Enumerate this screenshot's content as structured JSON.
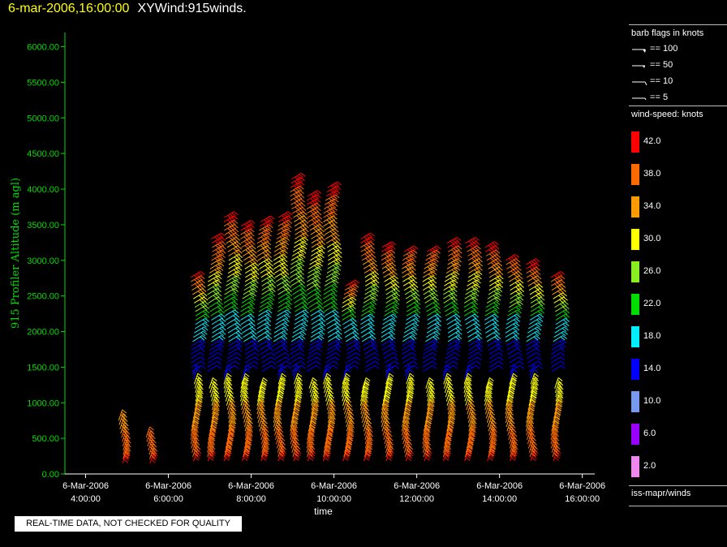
{
  "header": {
    "time": "6-mar-2006,16:00:00",
    "product": "XYWind:915winds."
  },
  "notice": "REAL-TIME DATA, NOT CHECKED FOR QUALITY",
  "legend": {
    "barb_title": "barb flags in knots",
    "barbs": [
      "== 100",
      "== 50",
      "== 10",
      "== 5"
    ],
    "speed_title": "wind-speed: knots",
    "colors": [
      {
        "label": "42.0",
        "color": "#ff0000"
      },
      {
        "label": "38.0",
        "color": "#ff6a00"
      },
      {
        "label": "34.0",
        "color": "#ff9a00"
      },
      {
        "label": "30.0",
        "color": "#ffff00"
      },
      {
        "label": "26.0",
        "color": "#88ee22"
      },
      {
        "label": "22.0",
        "color": "#00dd00"
      },
      {
        "label": "18.0",
        "color": "#00eeff"
      },
      {
        "label": "14.0",
        "color": "#0000ff"
      },
      {
        "label": "10.0",
        "color": "#7799ee"
      },
      {
        "label": "6.0",
        "color": "#9900ff"
      },
      {
        "label": "2.0",
        "color": "#ee88ee"
      }
    ],
    "source": "iss-mapr/winds"
  },
  "chart_data": {
    "type": "scatter",
    "ylabel": "915 Profiler Altitude (m agl)",
    "xlabel": "time",
    "ylim": [
      0,
      6200
    ],
    "xlim": [
      3.5,
      16.3
    ],
    "yticks": [
      "0.00",
      "500.00",
      "1000.00",
      "1500.00",
      "2000.00",
      "2500.00",
      "3000.00",
      "3500.00",
      "4000.00",
      "4500.00",
      "5000.00",
      "5500.00",
      "6000.00"
    ],
    "ytick_values": [
      0,
      500,
      1000,
      1500,
      2000,
      2500,
      3000,
      3500,
      4000,
      4500,
      5000,
      5500,
      6000
    ],
    "xticks": [
      {
        "value": 4,
        "date": "6-Mar-2006",
        "time": "4:00:00"
      },
      {
        "value": 6,
        "date": "6-Mar-2006",
        "time": "6:00:00"
      },
      {
        "value": 8,
        "date": "6-Mar-2006",
        "time": "8:00:00"
      },
      {
        "value": 10,
        "date": "6-Mar-2006",
        "time": "10:00:00"
      },
      {
        "value": 12,
        "date": "6-Mar-2006",
        "time": "12:00:00"
      },
      {
        "value": 14,
        "date": "6-Mar-2006",
        "time": "14:00:00"
      },
      {
        "value": 16,
        "date": "6-Mar-2006",
        "time": "16:00:00"
      }
    ],
    "profiles": [
      {
        "t": 4.85,
        "max": 800
      },
      {
        "t": 5.5,
        "max": 550
      },
      {
        "t": 6.6,
        "max": 2800
      },
      {
        "t": 7.0,
        "max": 3300
      },
      {
        "t": 7.4,
        "max": 3650
      },
      {
        "t": 7.8,
        "max": 3500
      },
      {
        "t": 8.2,
        "max": 3550
      },
      {
        "t": 8.6,
        "max": 3650
      },
      {
        "t": 9.0,
        "max": 4150
      },
      {
        "t": 9.4,
        "max": 3900
      },
      {
        "t": 9.8,
        "max": 4050
      },
      {
        "t": 10.25,
        "max": 2650
      },
      {
        "t": 10.7,
        "max": 3300
      },
      {
        "t": 11.2,
        "max": 3200
      },
      {
        "t": 11.7,
        "max": 3150
      },
      {
        "t": 12.2,
        "max": 3150
      },
      {
        "t": 12.7,
        "max": 3250
      },
      {
        "t": 13.2,
        "max": 3250
      },
      {
        "t": 13.7,
        "max": 3200
      },
      {
        "t": 14.2,
        "max": 3050
      },
      {
        "t": 14.7,
        "max": 2950
      },
      {
        "t": 15.3,
        "max": 2800
      }
    ]
  }
}
